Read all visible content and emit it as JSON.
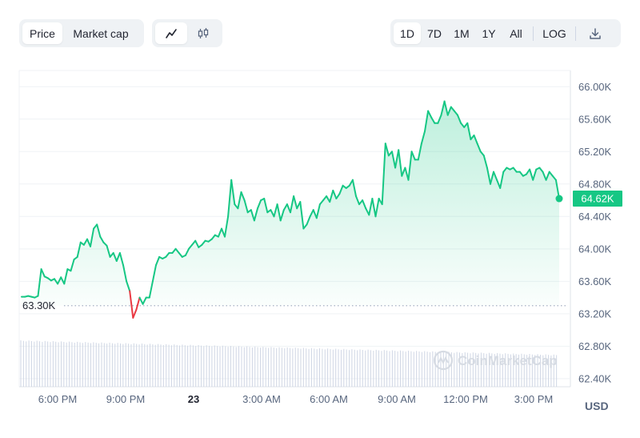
{
  "toolbar": {
    "metric_tabs": [
      {
        "label": "Price",
        "active": true
      },
      {
        "label": "Market cap",
        "active": false
      }
    ],
    "chart_type_icons": [
      {
        "icon": "line-chart-icon",
        "active": true
      },
      {
        "icon": "candlestick-icon",
        "active": false
      }
    ],
    "ranges": [
      {
        "label": "1D",
        "active": true
      },
      {
        "label": "7D",
        "active": false
      },
      {
        "label": "1M",
        "active": false
      },
      {
        "label": "1Y",
        "active": false
      },
      {
        "label": "All",
        "active": false
      }
    ],
    "log_label": "LOG",
    "download_icon": "download-icon"
  },
  "colors": {
    "up": "#16c784",
    "down": "#ea3943",
    "grid": "#eff2f5",
    "axis_text": "#58667e",
    "volume": "#cfd6e4"
  },
  "currency_label": "USD",
  "watermark": "CoinMarketCap",
  "chart_data": {
    "type": "line",
    "x_ticks": [
      "6:00 PM",
      "9:00 PM",
      "23",
      "3:00 AM",
      "6:00 AM",
      "9:00 AM",
      "12:00 PM",
      "3:00 PM"
    ],
    "y_ticks": [
      "62.40K",
      "62.80K",
      "63.20K",
      "63.60K",
      "64.00K",
      "64.40K",
      "64.80K",
      "65.20K",
      "65.60K",
      "66.00K"
    ],
    "ylim": [
      62.3,
      66.2
    ],
    "baseline": {
      "value": 63.3,
      "label": "63.30K"
    },
    "current": {
      "value": 64.62,
      "label": "64.62K"
    },
    "series": [
      {
        "values": [
          63.41,
          63.41,
          63.42,
          63.41,
          63.4,
          63.42,
          63.75,
          63.66,
          63.64,
          63.61,
          63.63,
          63.57,
          63.65,
          63.57,
          63.75,
          63.73,
          63.87,
          63.9,
          64.08,
          64.05,
          64.12,
          64.03,
          64.25,
          64.3,
          64.15,
          64.08,
          64.04,
          63.9,
          63.95,
          63.85,
          63.95,
          63.8,
          63.6,
          63.48,
          63.15,
          63.25,
          63.4,
          63.32,
          63.4,
          63.4,
          63.6,
          63.8,
          63.9,
          63.88,
          63.9,
          63.95,
          63.95,
          64.0,
          63.95,
          63.9,
          63.92,
          64.0,
          64.05,
          64.1,
          64.02,
          64.05,
          64.1,
          64.09,
          64.12,
          64.17,
          64.15,
          64.25,
          64.15,
          64.4,
          64.85,
          64.55,
          64.5,
          64.7,
          64.6,
          64.45,
          64.48,
          64.35,
          64.5,
          64.6,
          64.62,
          64.45,
          64.48,
          64.4,
          64.55,
          64.35,
          64.48,
          64.55,
          64.45,
          64.65,
          64.5,
          64.58,
          64.25,
          64.3,
          64.4,
          64.48,
          64.38,
          64.55,
          64.6,
          64.65,
          64.58,
          64.72,
          64.62,
          64.68,
          64.78,
          64.75,
          64.78,
          64.85,
          64.65,
          64.55,
          64.6,
          64.5,
          64.42,
          64.62,
          64.4,
          64.62,
          64.55,
          65.3,
          65.15,
          65.2,
          65.0,
          65.22,
          64.9,
          65.0,
          64.85,
          65.2,
          65.1,
          65.1,
          65.3,
          65.45,
          65.7,
          65.62,
          65.55,
          65.55,
          65.65,
          65.82,
          65.65,
          65.75,
          65.7,
          65.65,
          65.55,
          65.5,
          65.55,
          65.35,
          65.4,
          65.3,
          65.2,
          65.15,
          65.0,
          64.8,
          64.95,
          64.85,
          64.75,
          64.95,
          65.0,
          64.98,
          65.0,
          64.95,
          64.95,
          64.9,
          64.92,
          64.98,
          64.85,
          64.98,
          65.0,
          64.95,
          64.85,
          64.95,
          64.9,
          64.85,
          64.62
        ]
      }
    ],
    "volume_present": true
  }
}
